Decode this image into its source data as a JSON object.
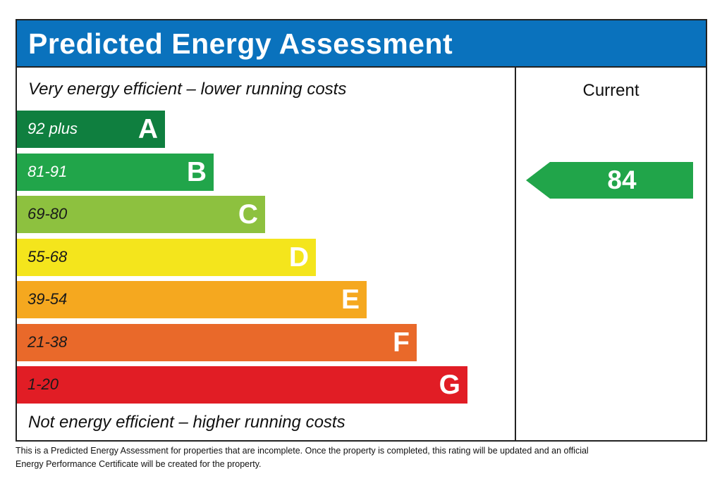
{
  "header": {
    "title": "Predicted Energy Assessment"
  },
  "scale": {
    "top_note": "Very energy efficient – lower running costs",
    "bottom_note": "Not energy efficient – higher running costs",
    "bands": [
      {
        "range": "92 plus",
        "letter": "A",
        "color": "#0f7f3f"
      },
      {
        "range": "81-91",
        "letter": "B",
        "color": "#21a54a"
      },
      {
        "range": "69-80",
        "letter": "C",
        "color": "#8dc13f"
      },
      {
        "range": "55-68",
        "letter": "D",
        "color": "#f4e51c"
      },
      {
        "range": "39-54",
        "letter": "E",
        "color": "#f5a81f"
      },
      {
        "range": "21-38",
        "letter": "F",
        "color": "#e9692a"
      },
      {
        "range": "1-20",
        "letter": "G",
        "color": "#e11d25"
      }
    ]
  },
  "current": {
    "label": "Current",
    "value": 84,
    "color": "#21a54a"
  },
  "footer": {
    "text": "This is a Predicted Energy Assessment for properties that are incomplete. Once the property is completed, this rating will be updated and an official Energy Performance Certificate will be created for the property."
  }
}
